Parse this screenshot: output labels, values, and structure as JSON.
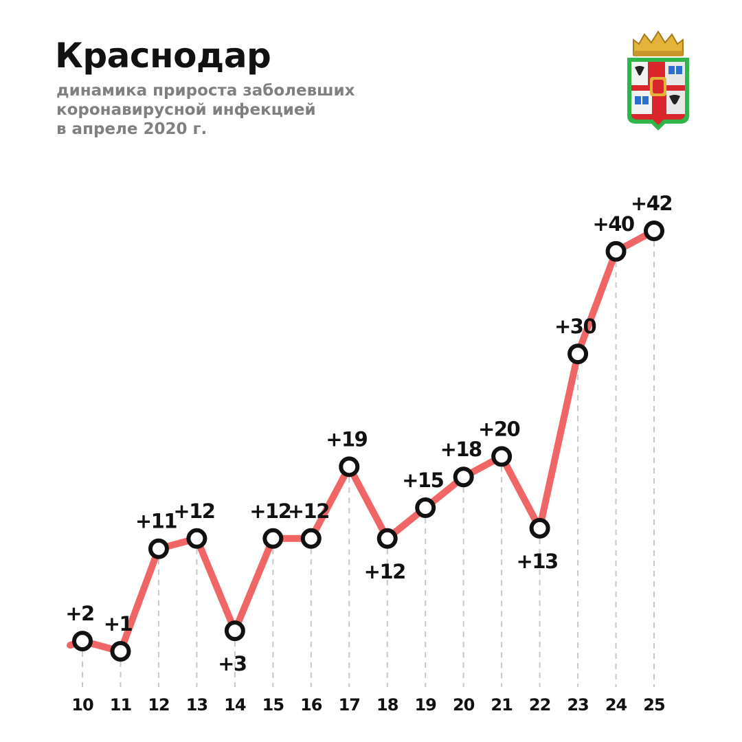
{
  "header": {
    "title": "Краснодар",
    "subtitle_lines": [
      "динамика прироста заболевших",
      "коронавирусной инфекцией",
      "в апреле 2020 г."
    ]
  },
  "colors": {
    "line": "#f06666",
    "marker_stroke": "#111111",
    "marker_fill": "#ffffff",
    "gridline": "#c8c8c8",
    "title": "#111111",
    "subtitle": "#808080"
  },
  "emblem": {
    "icon": "krasnodar-coat-of-arms-icon"
  },
  "chart_data": {
    "type": "line",
    "title": "Краснодар",
    "subtitle": "динамика прироста заболевших коронавирусной инфекцией в апреле 2020 г.",
    "xlabel": "",
    "ylabel": "",
    "categories": [
      "10",
      "11",
      "12",
      "13",
      "14",
      "15",
      "16",
      "17",
      "18",
      "19",
      "20",
      "21",
      "22",
      "23",
      "24",
      "25"
    ],
    "series": [
      {
        "values": [
          2,
          1,
          11,
          12,
          3,
          12,
          12,
          19,
          12,
          15,
          18,
          20,
          13,
          30,
          40,
          42
        ],
        "labels": [
          "+2",
          "+1",
          "+11",
          "+12",
          "+3",
          "+12",
          "+12",
          "+19",
          "+12",
          "+15",
          "+18",
          "+20",
          "+13",
          "+30",
          "+40",
          "+42"
        ]
      }
    ],
    "label_positions": [
      "above",
      "above",
      "above",
      "above",
      "below",
      "above",
      "above",
      "above",
      "below",
      "above",
      "above",
      "above",
      "below",
      "above",
      "above",
      "above"
    ],
    "grid": "vertical-dashed",
    "axes_visible": false,
    "legend": "none"
  }
}
